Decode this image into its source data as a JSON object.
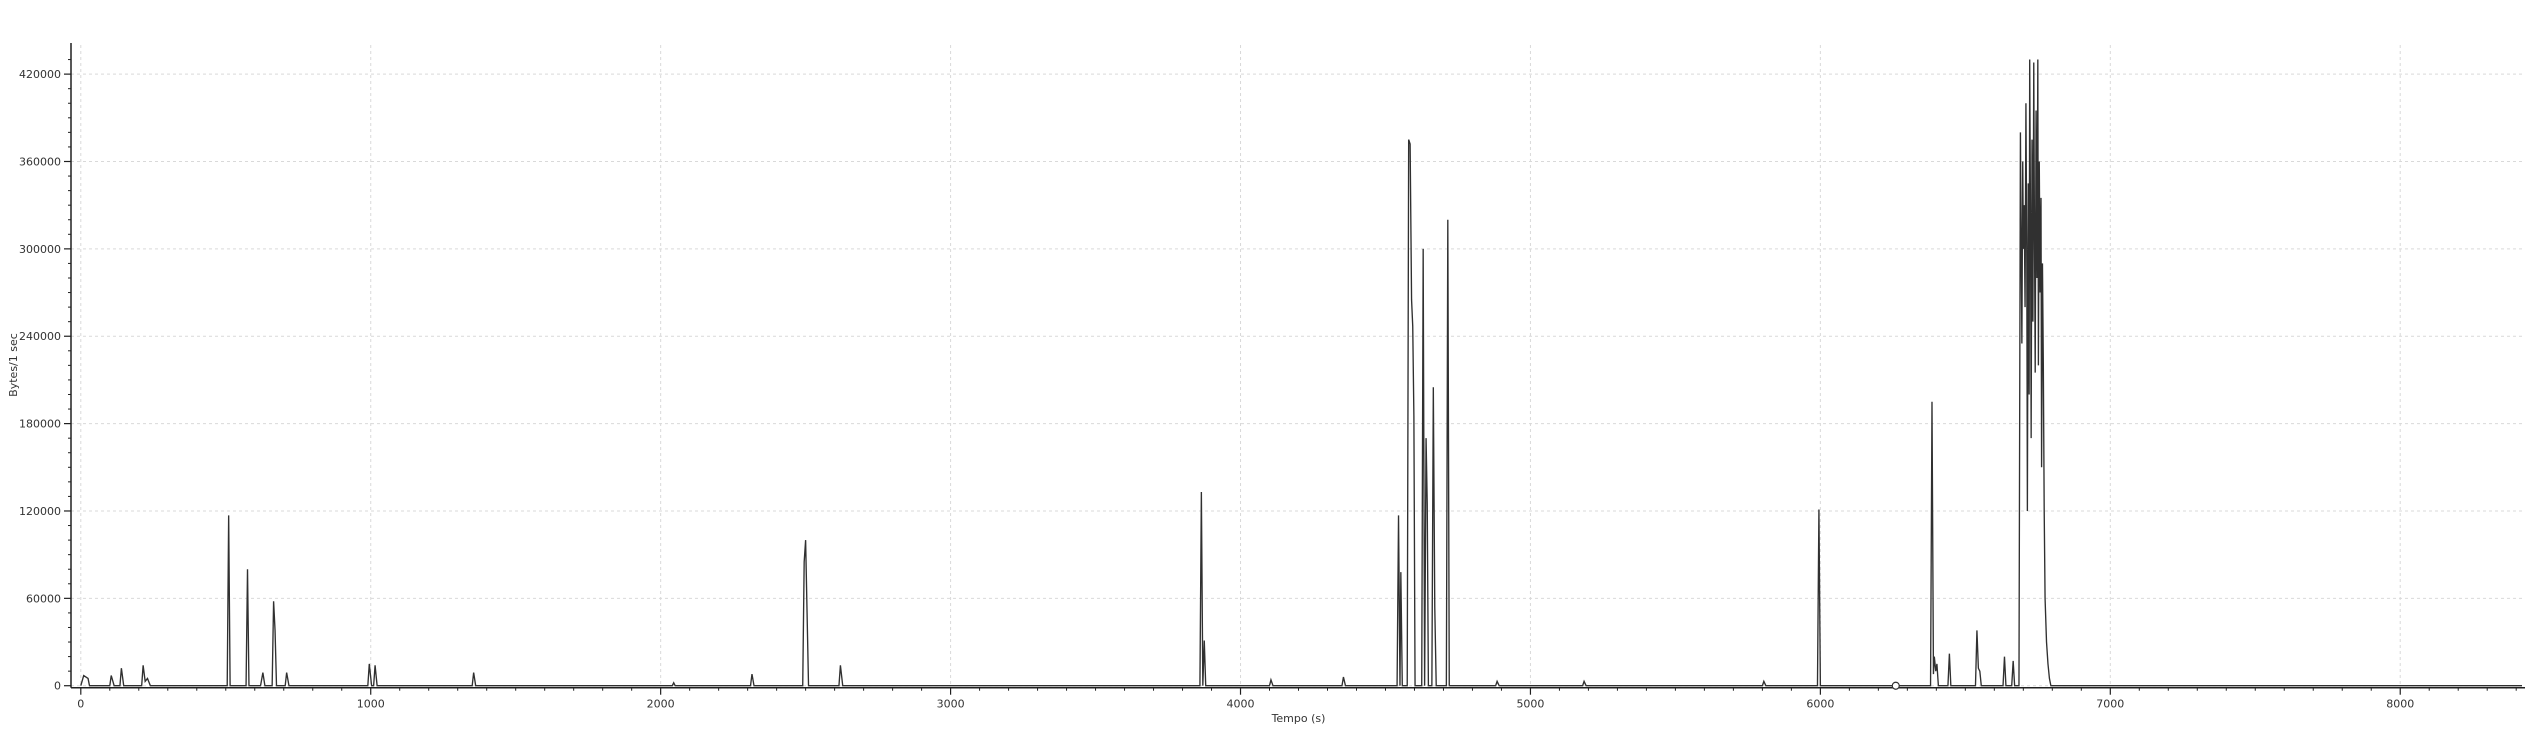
{
  "chart_data": {
    "type": "line",
    "xlabel": "Tempo (s)",
    "ylabel": "Bytes/1 sec",
    "xlim": [
      -20,
      8420
    ],
    "ylim": [
      -5000,
      440000
    ],
    "xticks": [
      0,
      1000,
      2000,
      3000,
      4000,
      5000,
      6000,
      7000,
      8000
    ],
    "yticks": [
      0,
      60000,
      120000,
      180000,
      240000,
      300000,
      360000,
      420000
    ],
    "grid": true,
    "legend": "none",
    "color": "#303030",
    "marker": {
      "x": 6260,
      "y": 0
    },
    "series": [
      {
        "values": [
          [
            0,
            0
          ],
          [
            10,
            7000
          ],
          [
            25,
            5000
          ],
          [
            30,
            0
          ],
          [
            100,
            0
          ],
          [
            105,
            7000
          ],
          [
            115,
            0
          ],
          [
            135,
            0
          ],
          [
            140,
            12000
          ],
          [
            148,
            0
          ],
          [
            210,
            0
          ],
          [
            215,
            14000
          ],
          [
            222,
            3000
          ],
          [
            230,
            5000
          ],
          [
            240,
            0
          ],
          [
            505,
            0
          ],
          [
            510,
            117000
          ],
          [
            515,
            0
          ],
          [
            570,
            0
          ],
          [
            575,
            80000
          ],
          [
            580,
            0
          ],
          [
            620,
            0
          ],
          [
            628,
            9000
          ],
          [
            635,
            0
          ],
          [
            660,
            0
          ],
          [
            665,
            58000
          ],
          [
            670,
            38000
          ],
          [
            675,
            0
          ],
          [
            705,
            0
          ],
          [
            710,
            9000
          ],
          [
            718,
            0
          ],
          [
            990,
            0
          ],
          [
            995,
            15000
          ],
          [
            1003,
            0
          ],
          [
            1010,
            0
          ],
          [
            1015,
            14000
          ],
          [
            1022,
            0
          ],
          [
            1350,
            0
          ],
          [
            1355,
            9000
          ],
          [
            1362,
            0
          ],
          [
            2040,
            0
          ],
          [
            2045,
            2000
          ],
          [
            2050,
            0
          ],
          [
            2310,
            0
          ],
          [
            2315,
            8000
          ],
          [
            2322,
            0
          ],
          [
            2490,
            0
          ],
          [
            2495,
            85000
          ],
          [
            2500,
            100000
          ],
          [
            2505,
            50000
          ],
          [
            2510,
            0
          ],
          [
            2615,
            0
          ],
          [
            2620,
            14000
          ],
          [
            2628,
            0
          ],
          [
            3860,
            0
          ],
          [
            3865,
            133000
          ],
          [
            3870,
            0
          ],
          [
            3875,
            31000
          ],
          [
            3880,
            0
          ],
          [
            4100,
            0
          ],
          [
            4105,
            4000
          ],
          [
            4112,
            0
          ],
          [
            4350,
            0
          ],
          [
            4355,
            6000
          ],
          [
            4362,
            0
          ],
          [
            4540,
            0
          ],
          [
            4545,
            117000
          ],
          [
            4550,
            0
          ],
          [
            4553,
            78000
          ],
          [
            4558,
            0
          ],
          [
            4575,
            0
          ],
          [
            4580,
            375000
          ],
          [
            4585,
            372000
          ],
          [
            4590,
            265000
          ],
          [
            4594,
            247000
          ],
          [
            4598,
            185000
          ],
          [
            4602,
            0
          ],
          [
            4625,
            0
          ],
          [
            4630,
            300000
          ],
          [
            4635,
            0
          ],
          [
            4640,
            170000
          ],
          [
            4644,
            125000
          ],
          [
            4648,
            0
          ],
          [
            4660,
            0
          ],
          [
            4665,
            205000
          ],
          [
            4670,
            54000
          ],
          [
            4675,
            0
          ],
          [
            4710,
            0
          ],
          [
            4715,
            320000
          ],
          [
            4720,
            0
          ],
          [
            4880,
            0
          ],
          [
            4885,
            3000
          ],
          [
            4892,
            0
          ],
          [
            5180,
            0
          ],
          [
            5185,
            3000
          ],
          [
            5192,
            0
          ],
          [
            5800,
            0
          ],
          [
            5805,
            3000
          ],
          [
            5812,
            0
          ],
          [
            5990,
            0
          ],
          [
            5995,
            121000
          ],
          [
            6000,
            0
          ],
          [
            6380,
            0
          ],
          [
            6385,
            195000
          ],
          [
            6390,
            8000
          ],
          [
            6393,
            20000
          ],
          [
            6398,
            10000
          ],
          [
            6402,
            15000
          ],
          [
            6407,
            0
          ],
          [
            6440,
            0
          ],
          [
            6445,
            22000
          ],
          [
            6450,
            0
          ],
          [
            6535,
            0
          ],
          [
            6540,
            38000
          ],
          [
            6545,
            12000
          ],
          [
            6550,
            10000
          ],
          [
            6555,
            0
          ],
          [
            6630,
            0
          ],
          [
            6635,
            20000
          ],
          [
            6640,
            0
          ],
          [
            6660,
            0
          ],
          [
            6665,
            17000
          ],
          [
            6670,
            0
          ],
          [
            6685,
            0
          ],
          [
            6690,
            380000
          ],
          [
            6692,
            320000
          ],
          [
            6695,
            235000
          ],
          [
            6698,
            360000
          ],
          [
            6700,
            300000
          ],
          [
            6703,
            330000
          ],
          [
            6706,
            260000
          ],
          [
            6709,
            400000
          ],
          [
            6712,
            290000
          ],
          [
            6714,
            120000
          ],
          [
            6717,
            345000
          ],
          [
            6720,
            200000
          ],
          [
            6722,
            430000
          ],
          [
            6725,
            310000
          ],
          [
            6727,
            170000
          ],
          [
            6730,
            375000
          ],
          [
            6733,
            250000
          ],
          [
            6736,
            428000
          ],
          [
            6738,
            330000
          ],
          [
            6741,
            215000
          ],
          [
            6744,
            395000
          ],
          [
            6747,
            280000
          ],
          [
            6750,
            430000
          ],
          [
            6752,
            220000
          ],
          [
            6755,
            360000
          ],
          [
            6758,
            270000
          ],
          [
            6761,
            335000
          ],
          [
            6763,
            150000
          ],
          [
            6766,
            290000
          ],
          [
            6769,
            220000
          ],
          [
            6772,
            120000
          ],
          [
            6775,
            60000
          ],
          [
            6780,
            30000
          ],
          [
            6785,
            15000
          ],
          [
            6790,
            5000
          ],
          [
            6795,
            0
          ],
          [
            8420,
            0
          ]
        ]
      }
    ]
  }
}
